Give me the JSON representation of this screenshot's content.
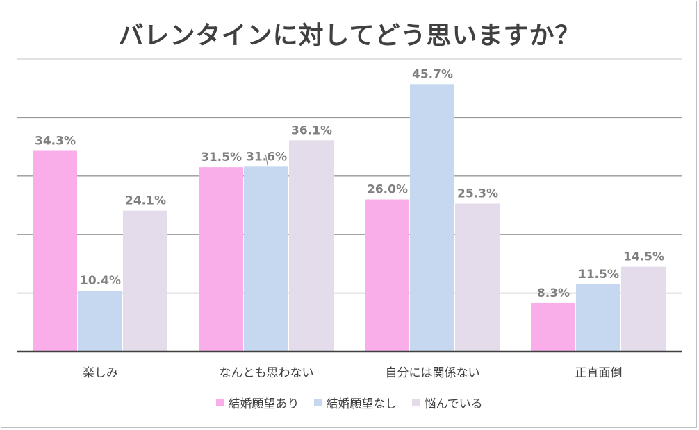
{
  "chart_data": {
    "type": "bar",
    "title": "バレンタインに対してどう思いますか？",
    "categories": [
      "楽しみ",
      "なんとも思わない",
      "自分には関係ない",
      "正直面倒"
    ],
    "series": [
      {
        "name": "結婚願望あり",
        "values": [
          34.3,
          31.5,
          26.0,
          8.3
        ],
        "labels": [
          "34.3%",
          "31.5%",
          "26.0%",
          "8.3%"
        ],
        "color": "#f9aee9"
      },
      {
        "name": "結婚願望なし",
        "values": [
          10.4,
          31.6,
          45.7,
          11.5
        ],
        "labels": [
          "10.4%",
          "31.6%",
          "45.7%",
          "11.5%"
        ],
        "color": "#c5d8f0"
      },
      {
        "name": "悩んでいる",
        "values": [
          24.1,
          36.1,
          25.3,
          14.5
        ],
        "labels": [
          "24.1%",
          "36.1%",
          "25.3%",
          "14.5%"
        ],
        "color": "#e4dcea"
      }
    ],
    "ylim": [
      0,
      50
    ],
    "grid": true,
    "legend_position": "bottom",
    "colors": {
      "axis": "#404040",
      "grid": "#9a9a9a",
      "label": "#7f7f7f",
      "text": "#404040"
    }
  }
}
